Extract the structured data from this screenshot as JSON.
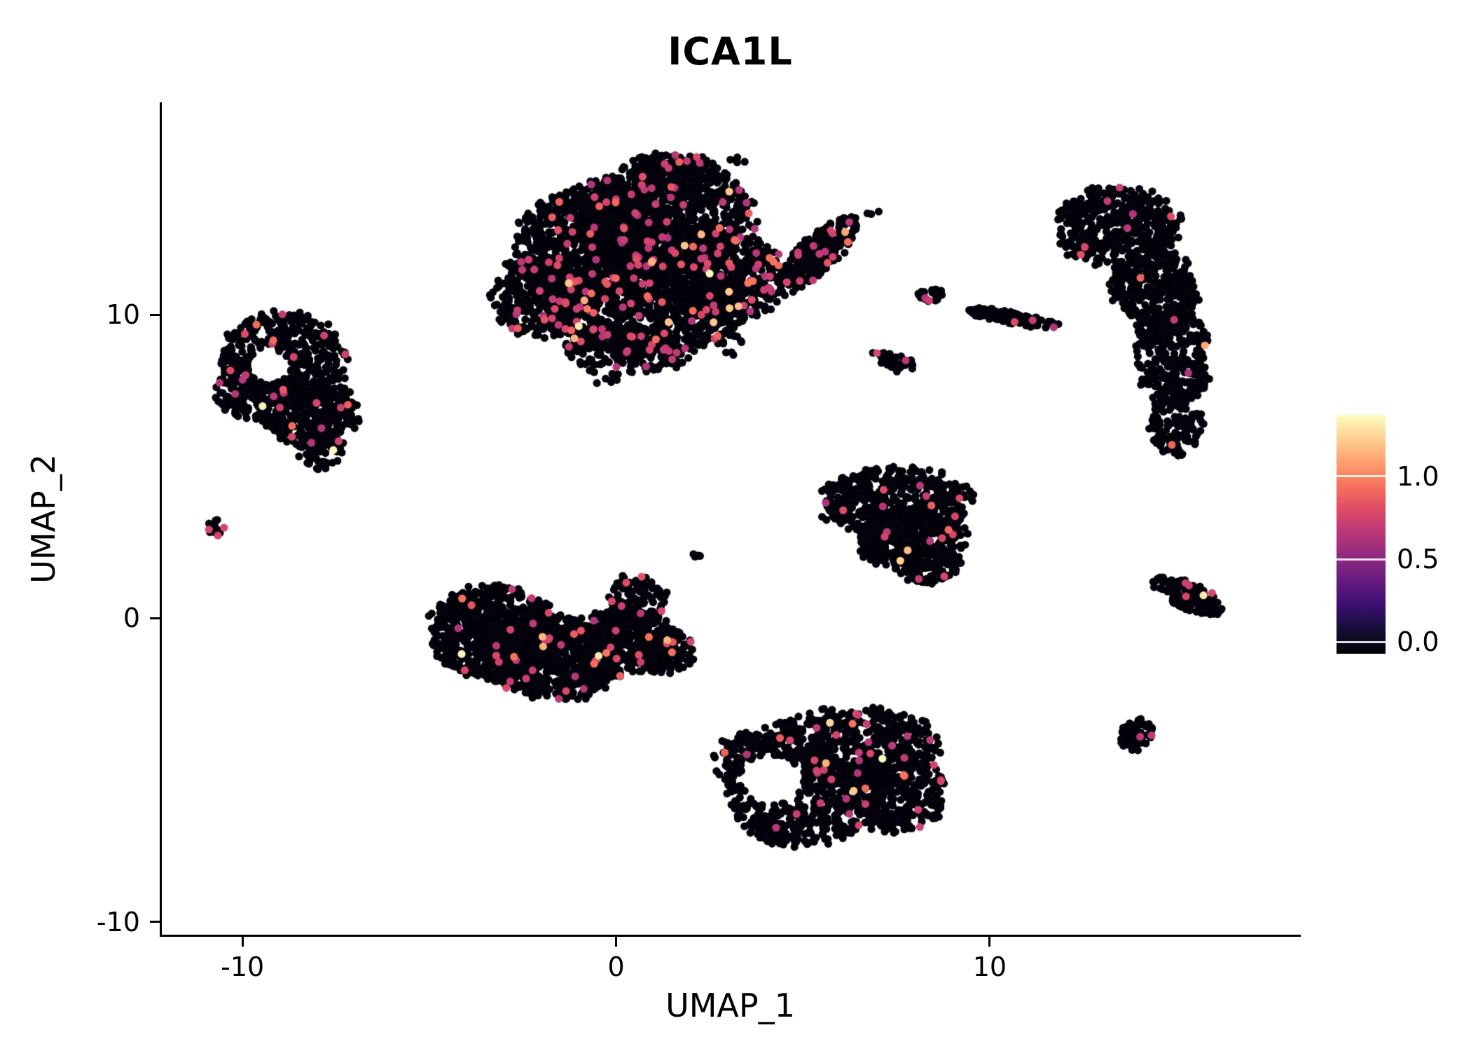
{
  "chart_data": {
    "type": "scatter",
    "title": "ICA1L",
    "xlabel": "UMAP_1",
    "ylabel": "UMAP_2",
    "xlim": [
      -12.16,
      18.27
    ],
    "ylim": [
      -10.42,
      16.97
    ],
    "x_ticks": [
      -10,
      0,
      10
    ],
    "y_ticks": [
      -10,
      0,
      10
    ],
    "grid": false,
    "legend_position": "right",
    "point_radius_px": 5.6,
    "colorbar": {
      "ticks": [
        0.0,
        0.5,
        1.0
      ],
      "tick_labels": [
        "0.0",
        "0.5",
        "1.0"
      ],
      "domain": [
        -0.07,
        1.37
      ],
      "colormap": "magma",
      "gradient": [
        {
          "stop": 0.0,
          "color": "#000004"
        },
        {
          "stop": 0.1,
          "color": "#140e36"
        },
        {
          "stop": 0.2,
          "color": "#3b0f70"
        },
        {
          "stop": 0.3,
          "color": "#641a80"
        },
        {
          "stop": 0.4,
          "color": "#8c2981"
        },
        {
          "stop": 0.5,
          "color": "#b73779"
        },
        {
          "stop": 0.6,
          "color": "#de4968"
        },
        {
          "stop": 0.7,
          "color": "#f7705c"
        },
        {
          "stop": 0.8,
          "color": "#fe9f6d"
        },
        {
          "stop": 0.9,
          "color": "#fecf92"
        },
        {
          "stop": 1.0,
          "color": "#fcfdbf"
        }
      ]
    },
    "clusters": [
      {
        "name": "top-center-large",
        "seed": 11,
        "colored_fraction": 0.06,
        "blobs": [
          {
            "cx": -0.5,
            "cy": 12.2,
            "rx": 2.2,
            "ry": 2.0,
            "n": 850
          },
          {
            "cx": 1.3,
            "cy": 13.2,
            "rx": 2.4,
            "ry": 2.0,
            "n": 950
          },
          {
            "cx": 0.8,
            "cy": 10.3,
            "rx": 2.6,
            "ry": 1.7,
            "n": 850
          },
          {
            "cx": 2.9,
            "cy": 11.2,
            "rx": 1.6,
            "ry": 1.5,
            "n": 450
          },
          {
            "cx": -2.0,
            "cy": 10.6,
            "rx": 1.3,
            "ry": 1.4,
            "n": 320
          },
          {
            "cx": 1.5,
            "cy": 14.7,
            "rx": 1.2,
            "ry": 0.7,
            "n": 140
          },
          {
            "cx": 0.3,
            "cy": 8.8,
            "rx": 1.8,
            "ry": 0.8,
            "n": 180
          },
          {
            "cx": 5.4,
            "cy": 12.0,
            "rx": 1.5,
            "ry": 0.55,
            "rot": 50,
            "n": 260
          }
        ]
      },
      {
        "name": "left-upper",
        "seed": 22,
        "colored_fraction": 0.03,
        "holes": [
          {
            "cx": -9.3,
            "cy": 8.3,
            "r": 0.55
          }
        ],
        "blobs": [
          {
            "cx": -8.9,
            "cy": 8.6,
            "rx": 1.7,
            "ry": 1.5,
            "n": 480
          },
          {
            "cx": -8.2,
            "cy": 6.8,
            "rx": 1.3,
            "ry": 1.2,
            "n": 330
          },
          {
            "cx": -9.9,
            "cy": 7.5,
            "rx": 0.8,
            "ry": 1.0,
            "n": 140
          },
          {
            "cx": -7.9,
            "cy": 5.6,
            "rx": 0.6,
            "ry": 0.7,
            "n": 60
          }
        ]
      },
      {
        "name": "far-left-dot",
        "seed": 33,
        "colored_fraction": 0.15,
        "blobs": [
          {
            "cx": -10.7,
            "cy": 3.0,
            "rx": 0.24,
            "ry": 0.28,
            "n": 14
          }
        ]
      },
      {
        "name": "mid-left",
        "seed": 44,
        "colored_fraction": 0.028,
        "blobs": [
          {
            "cx": -3.3,
            "cy": -0.5,
            "rx": 1.7,
            "ry": 1.6,
            "n": 750
          },
          {
            "cx": -1.6,
            "cy": -1.3,
            "rx": 1.8,
            "ry": 1.4,
            "n": 650
          },
          {
            "cx": 0.2,
            "cy": -0.8,
            "rx": 1.4,
            "ry": 1.1,
            "n": 340
          },
          {
            "cx": 0.55,
            "cy": 0.5,
            "rx": 0.8,
            "ry": 0.95,
            "n": 130
          },
          {
            "cx": 1.3,
            "cy": -1.1,
            "rx": 0.8,
            "ry": 0.7,
            "n": 110
          }
        ]
      },
      {
        "name": "center-right",
        "seed": 55,
        "colored_fraction": 0.022,
        "blobs": [
          {
            "cx": 7.5,
            "cy": 3.8,
            "rx": 2.0,
            "ry": 1.2,
            "n": 520
          },
          {
            "cx": 7.9,
            "cy": 2.6,
            "rx": 1.5,
            "ry": 1.0,
            "n": 340
          },
          {
            "cx": 8.3,
            "cy": 1.8,
            "rx": 0.9,
            "ry": 0.65,
            "n": 130
          }
        ]
      },
      {
        "name": "bottom-center",
        "seed": 66,
        "colored_fraction": 0.028,
        "holes": [
          {
            "cx": 4.15,
            "cy": -5.3,
            "r": 0.8
          }
        ],
        "blobs": [
          {
            "cx": 6.3,
            "cy": -4.2,
            "rx": 2.4,
            "ry": 1.3,
            "n": 600
          },
          {
            "cx": 5.0,
            "cy": -6.0,
            "rx": 2.0,
            "ry": 1.6,
            "n": 540
          },
          {
            "cx": 7.5,
            "cy": -5.8,
            "rx": 1.4,
            "ry": 1.2,
            "n": 300
          },
          {
            "cx": 3.5,
            "cy": -4.7,
            "rx": 0.9,
            "ry": 1.0,
            "n": 140
          }
        ]
      },
      {
        "name": "right-crescent",
        "seed": 77,
        "colored_fraction": 0.016,
        "holes": [
          {
            "cx": 12.9,
            "cy": 9.5,
            "r": 1.0
          }
        ],
        "blobs": [
          {
            "cx": 13.4,
            "cy": 12.9,
            "rx": 1.7,
            "ry": 1.3,
            "n": 430
          },
          {
            "cx": 14.4,
            "cy": 10.7,
            "rx": 1.2,
            "ry": 1.4,
            "n": 330
          },
          {
            "cx": 14.9,
            "cy": 8.5,
            "rx": 1.0,
            "ry": 1.6,
            "n": 280
          },
          {
            "cx": 15.0,
            "cy": 6.4,
            "rx": 0.7,
            "ry": 1.1,
            "n": 120
          }
        ]
      },
      {
        "name": "streak-small-a",
        "seed": 88,
        "colored_fraction": 0.05,
        "blobs": [
          {
            "cx": 8.45,
            "cy": 10.65,
            "rx": 0.35,
            "ry": 0.22,
            "n": 22
          }
        ]
      },
      {
        "name": "streak-diagonal",
        "seed": 99,
        "colored_fraction": 0.045,
        "blobs": [
          {
            "cx": 10.6,
            "cy": 9.9,
            "rx": 1.3,
            "ry": 0.2,
            "rot": -12,
            "n": 95
          }
        ]
      },
      {
        "name": "streak-small-b",
        "seed": 111,
        "colored_fraction": 0.02,
        "blobs": [
          {
            "cx": 7.4,
            "cy": 8.45,
            "rx": 0.7,
            "ry": 0.28,
            "rot": -22,
            "n": 42
          }
        ]
      },
      {
        "name": "right-small-wedge",
        "seed": 122,
        "colored_fraction": 0.05,
        "blobs": [
          {
            "cx": 15.3,
            "cy": 0.75,
            "rx": 1.05,
            "ry": 0.42,
            "rot": -28,
            "n": 140
          }
        ]
      },
      {
        "name": "bottom-right-dot",
        "seed": 133,
        "colored_fraction": 0.035,
        "blobs": [
          {
            "cx": 13.95,
            "cy": -3.85,
            "rx": 0.48,
            "ry": 0.55,
            "n": 60
          }
        ]
      },
      {
        "name": "stray-dots",
        "seed": 144,
        "colored_fraction": 0,
        "blobs": [
          {
            "cx": 3.0,
            "cy": 9.0,
            "rx": 0.55,
            "ry": 0.35,
            "n": 12
          },
          {
            "cx": 6.9,
            "cy": 13.3,
            "rx": 0.2,
            "ry": 0.15,
            "n": 3
          },
          {
            "cx": 3.3,
            "cy": 15.1,
            "rx": 0.3,
            "ry": 0.15,
            "n": 4
          },
          {
            "cx": -0.2,
            "cy": 7.9,
            "rx": 0.5,
            "ry": 0.25,
            "n": 6
          },
          {
            "cx": 2.2,
            "cy": 2.0,
            "rx": 0.25,
            "ry": 0.3,
            "n": 4
          }
        ]
      }
    ]
  }
}
